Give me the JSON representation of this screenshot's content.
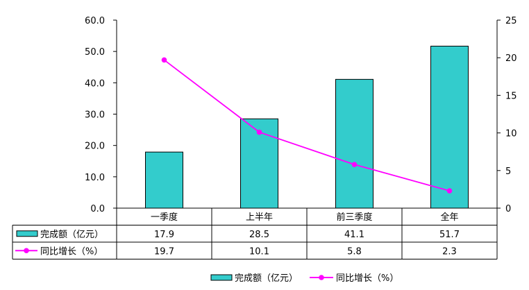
{
  "chart_data": {
    "type": "bar",
    "categories": [
      "一季度",
      "上半年",
      "前三季度",
      "全年"
    ],
    "series": [
      {
        "name": "完成额（亿元）",
        "type": "bar",
        "axis": "left",
        "values": [
          17.9,
          28.5,
          41.1,
          51.7
        ],
        "display": [
          "17.9",
          "28.5",
          "41.1",
          "51.7"
        ]
      },
      {
        "name": "同比增长（%）",
        "type": "line",
        "axis": "right",
        "values": [
          19.7,
          10.1,
          5.8,
          2.3
        ],
        "display": [
          "19.7",
          "10.1",
          "5.8",
          "2.3"
        ]
      }
    ],
    "left_axis": {
      "ylim": [
        0,
        60
      ],
      "ticks": [
        "0.0",
        "10.0",
        "20.0",
        "30.0",
        "40.0",
        "50.0",
        "60.0"
      ]
    },
    "right_axis": {
      "ylim": [
        0,
        25
      ],
      "ticks": [
        "0",
        "5",
        "10",
        "15",
        "20",
        "25"
      ]
    },
    "data_table": true,
    "legend": {
      "position": "bottom",
      "items": [
        "完成额（亿元）",
        "同比增长（%）"
      ]
    },
    "colors": {
      "bar": "#33CCCC",
      "bar_edge": "#000000",
      "line": "#FF00FF"
    },
    "grid": false
  }
}
